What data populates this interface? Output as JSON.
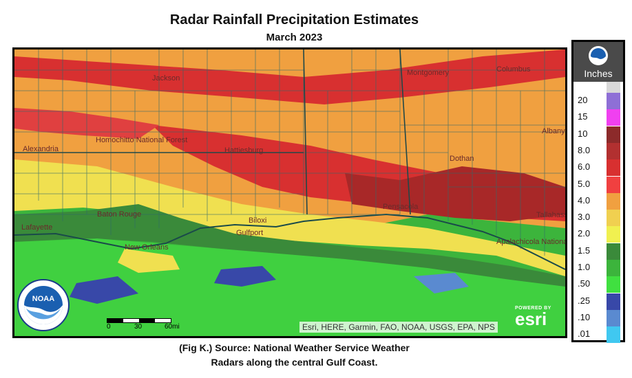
{
  "header": {
    "title": "Radar Rainfall Precipitation Estimates",
    "subtitle": "March 2023"
  },
  "caption": {
    "line1": "(Fig K.) Source: National Weather Service Weather",
    "line2": "Radars along the central Gulf Coast."
  },
  "legend": {
    "unit": "Inches",
    "items": [
      {
        "label": "20",
        "color": "#8e6fd6"
      },
      {
        "label": "15",
        "color": "#f040f0"
      },
      {
        "label": "10",
        "color": "#8c2a2a"
      },
      {
        "label": "8.0",
        "color": "#b23030"
      },
      {
        "label": "6.0",
        "color": "#d83030"
      },
      {
        "label": "5.0",
        "color": "#f04040"
      },
      {
        "label": "4.0",
        "color": "#f0a040"
      },
      {
        "label": "3.0",
        "color": "#f0d050"
      },
      {
        "label": "2.0",
        "color": "#f0f050"
      },
      {
        "label": "1.5",
        "color": "#3a8a3a"
      },
      {
        "label": "1.0",
        "color": "#3cb43c"
      },
      {
        "label": ".50",
        "color": "#40e040"
      },
      {
        "label": ".25",
        "color": "#3848a8"
      },
      {
        "label": ".10",
        "color": "#5a8ad0"
      },
      {
        "label": ".01",
        "color": "#40c8f0"
      }
    ]
  },
  "map": {
    "places": [
      {
        "name": "Montgomery",
        "color": "#6a2a2a"
      },
      {
        "name": "Columbus",
        "color": "#6a2a2a"
      },
      {
        "name": "Dothan",
        "color": "#6a2a2a"
      },
      {
        "name": "Biloxi",
        "color": "#6a2a2a"
      },
      {
        "name": "Gulfport",
        "color": "#6a2a2a"
      },
      {
        "name": "Hattiesburg",
        "color": "#6a2a2a"
      },
      {
        "name": "Lafayette",
        "color": "#6a2a2a"
      },
      {
        "name": "Tallahassee",
        "color": "#6a2a2a"
      },
      {
        "name": "Alexandria",
        "color": "#6a2a2a"
      },
      {
        "name": "Albany",
        "color": "#6a2a2a"
      },
      {
        "name": "Homochitto National Forest",
        "color": "#6a2a2a"
      },
      {
        "name": "Baton Rouge",
        "color": "#6a2a2a"
      },
      {
        "name": "New Orleans",
        "color": "#6a2a2a"
      },
      {
        "name": "Pensacola",
        "color": "#6a2a2a"
      },
      {
        "name": "Jackson",
        "color": "#6a2a2a"
      },
      {
        "name": "Apalachicola National Forest",
        "color": "#6a2a2a"
      }
    ],
    "attribution": "Esri, HERE, Garmin, FAO, NOAA, USGS, EPA, NPS",
    "esri_powered": "POWERED BY",
    "esri_name": "esri",
    "scale_labels": [
      "0",
      "30",
      "60mi"
    ]
  }
}
